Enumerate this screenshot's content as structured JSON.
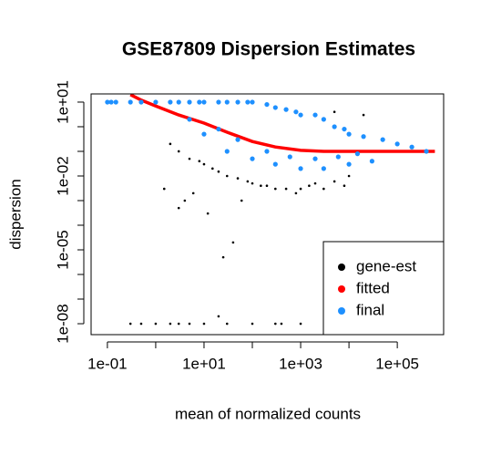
{
  "chart_data": {
    "type": "scatter",
    "title": "GSE87809 Dispersion Estimates",
    "x_label": "mean of normalized counts",
    "y_label": "dispersion",
    "log_x": true,
    "log_y": true,
    "xlim": [
      0.046,
      910000
    ],
    "ylim": [
      3.6e-09,
      21.5
    ],
    "xticks": [
      {
        "value": 0.1,
        "label": "1e-01"
      },
      {
        "value": 10,
        "label": "1e+01"
      },
      {
        "value": 1000,
        "label": "1e+03"
      },
      {
        "value": 100000,
        "label": "1e+05"
      }
    ],
    "xminor_ticks": [
      1,
      100,
      10000
    ],
    "yticks": [
      {
        "value": 10,
        "label": "1e+01"
      },
      {
        "value": 0.01,
        "label": "1e-02"
      },
      {
        "value": 1e-05,
        "label": "1e-05"
      },
      {
        "value": 1e-08,
        "label": "1e-08"
      }
    ],
    "yminor_ticks": [
      1,
      0.1,
      0.001,
      0.0001,
      1e-06,
      1e-07
    ],
    "legend_position": "bottomright",
    "series": [
      {
        "name": "gene-est",
        "color": "#000000",
        "style": "points",
        "x": [
          2,
          3,
          5,
          8,
          10,
          15,
          20,
          30,
          50,
          80,
          100,
          150,
          200,
          300,
          500,
          800,
          1000,
          1500,
          2000,
          3000,
          5000,
          8000,
          10000,
          3,
          4,
          6,
          12,
          40,
          25,
          60,
          1.5,
          0.3,
          0.5,
          1,
          2,
          5,
          10,
          30,
          100,
          300,
          1000,
          3,
          20,
          400,
          5000,
          20000
        ],
        "values": [
          0.2,
          0.1,
          0.05,
          0.04,
          0.03,
          0.02,
          0.015,
          0.01,
          0.008,
          0.006,
          0.005,
          0.004,
          0.004,
          0.003,
          0.003,
          0.002,
          0.003,
          0.004,
          0.005,
          0.003,
          0.006,
          0.004,
          0.01,
          0.0005,
          0.001,
          0.002,
          0.0003,
          2e-05,
          5e-06,
          0.001,
          0.003,
          1e-08,
          1e-08,
          1e-08,
          1e-08,
          1e-08,
          1e-08,
          1e-08,
          1e-08,
          1e-08,
          1e-08,
          1e-08,
          2e-08,
          1e-08,
          4,
          3
        ]
      },
      {
        "name": "fitted",
        "color": "#ff0000",
        "style": "line",
        "x": [
          0.3,
          0.5,
          1,
          3,
          10,
          30,
          100,
          300,
          1000,
          3000,
          10000,
          100000,
          600000
        ],
        "values": [
          20,
          12,
          7,
          3,
          1.4,
          0.6,
          0.25,
          0.15,
          0.11,
          0.1,
          0.1,
          0.1,
          0.1
        ]
      },
      {
        "name": "final",
        "color": "#1e90ff",
        "style": "points",
        "x": [
          0.1,
          0.12,
          0.15,
          0.3,
          0.5,
          1,
          2,
          3,
          5,
          8,
          10,
          20,
          30,
          50,
          80,
          100,
          200,
          300,
          500,
          800,
          1000,
          2000,
          3000,
          5000,
          8000,
          10000,
          20000,
          50000,
          100000,
          200000,
          400000,
          10,
          30,
          100,
          300,
          1000,
          3000,
          10000,
          30000,
          5,
          20,
          50,
          200,
          600,
          2000,
          6000,
          15000
        ],
        "values": [
          10,
          10,
          10,
          10,
          10,
          10,
          10,
          10,
          10,
          10,
          10,
          10,
          10,
          10,
          10,
          10,
          8,
          6,
          5,
          4,
          3,
          3,
          2,
          1,
          0.8,
          0.5,
          0.4,
          0.3,
          0.2,
          0.15,
          0.1,
          0.5,
          0.1,
          0.05,
          0.03,
          0.02,
          0.02,
          0.03,
          0.04,
          2,
          0.8,
          0.3,
          0.1,
          0.06,
          0.05,
          0.06,
          0.08
        ]
      }
    ]
  }
}
